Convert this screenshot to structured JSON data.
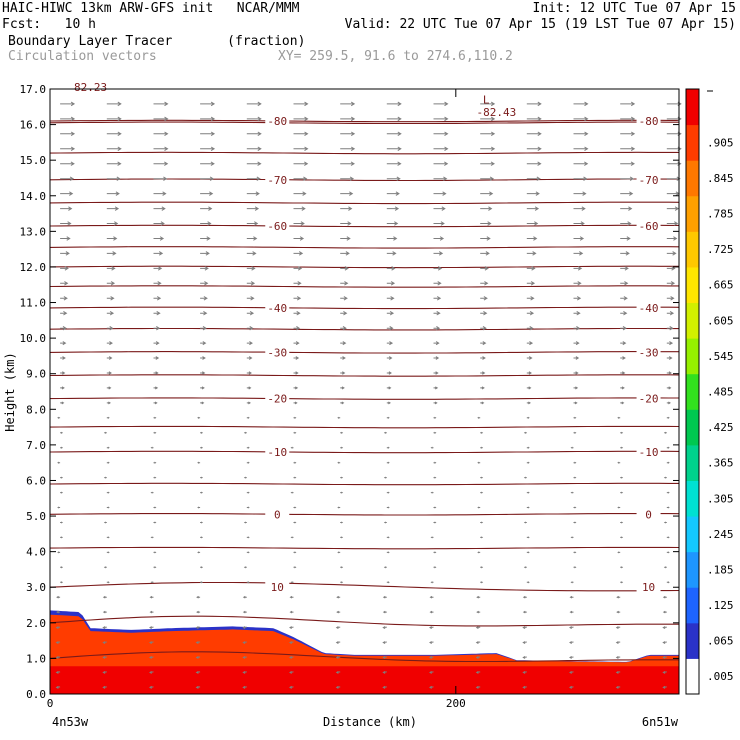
{
  "header": {
    "model_line": "HAIC-HIWC 13km ARW-GFS init   NCAR/MMM",
    "init_line": "Init: 12 UTC Tue 07 Apr 15",
    "fcst_line": "Fcst:   10 h",
    "valid_line": "Valid: 22 UTC Tue 07 Apr 15 (19 LST Tue 07 Apr 15)",
    "field_line": "Boundary Layer Tracer       (fraction)",
    "vector_line": "Circulation vectors",
    "xy_line": "XY= 259.5, 91.6 to 274.6,110.2"
  },
  "chart_data": {
    "type": "heatmap",
    "xlabel": "Distance (km)",
    "ylabel": "Height (km)",
    "xlim": [
      0,
      310
    ],
    "ylim": [
      0,
      17
    ],
    "x_ticks": [
      0,
      200
    ],
    "y_ticks": [
      "0.0",
      "1.0",
      "2.0",
      "3.0",
      "4.0",
      "5.0",
      "6.0",
      "7.0",
      "8.0",
      "9.0",
      "10.0",
      "11.0",
      "12.0",
      "13.0",
      "14.0",
      "15.0",
      "16.0",
      "17.0"
    ],
    "x_end_labels": {
      "left": "4n53w",
      "right": "6n51w"
    },
    "colorbar": {
      "labels": [
        ".005",
        ".065",
        ".125",
        ".185",
        ".245",
        ".305",
        ".365",
        ".425",
        ".485",
        ".545",
        ".605",
        ".665",
        ".725",
        ".785",
        ".845",
        ".905"
      ],
      "colors": [
        "#ffffff",
        "#2a32c8",
        "#1e64ff",
        "#1e96ff",
        "#14c8ff",
        "#00e1d2",
        "#00d28c",
        "#00c850",
        "#32e11e",
        "#96f000",
        "#d2f000",
        "#ffe600",
        "#ffc800",
        "#ffa000",
        "#ff7800",
        "#ff3c00",
        "#f00000"
      ]
    },
    "temperature_contours": {
      "color": "#7a1a1a",
      "levels": [
        {
          "value": 10,
          "height_km": 3.0,
          "label": "10"
        },
        {
          "value": 0,
          "height_km": 5.05,
          "label": "0"
        },
        {
          "value": -10,
          "height_km": 6.8,
          "label": "-10"
        },
        {
          "value": -20,
          "height_km": 8.3,
          "label": "-20"
        },
        {
          "value": -30,
          "height_km": 9.6,
          "label": "-30"
        },
        {
          "value": -40,
          "height_km": 10.85,
          "label": "-40"
        },
        {
          "value": -60,
          "height_km": 13.15,
          "label": "-60"
        },
        {
          "value": -70,
          "height_km": 14.45,
          "label": "-70"
        },
        {
          "value": -80,
          "height_km": 16.1,
          "label": "-80"
        }
      ],
      "unlabeled_heights_km": [
        1.0,
        2.0,
        4.1,
        5.9,
        7.5,
        8.95,
        10.25,
        11.45,
        12.0,
        12.55,
        13.8,
        15.2,
        16.05
      ]
    },
    "annotations": [
      {
        "text": "L",
        "x_km": 215,
        "height_km": 16.7
      },
      {
        "text": "-82.43",
        "x_km": 220,
        "height_km": 16.35
      },
      {
        "text": "82.23",
        "x_km": 20,
        "height_km": 17.05
      }
    ],
    "tracer_layer": {
      "top_height_km": [
        [
          0,
          2.35
        ],
        [
          15,
          2.3
        ],
        [
          20,
          1.85
        ],
        [
          40,
          1.8
        ],
        [
          60,
          1.85
        ],
        [
          90,
          1.9
        ],
        [
          110,
          1.85
        ],
        [
          120,
          1.6
        ],
        [
          135,
          1.15
        ],
        [
          150,
          1.1
        ],
        [
          190,
          1.1
        ],
        [
          220,
          1.15
        ],
        [
          230,
          0.95
        ],
        [
          285,
          0.9
        ],
        [
          295,
          1.1
        ],
        [
          310,
          1.1
        ]
      ]
    }
  }
}
